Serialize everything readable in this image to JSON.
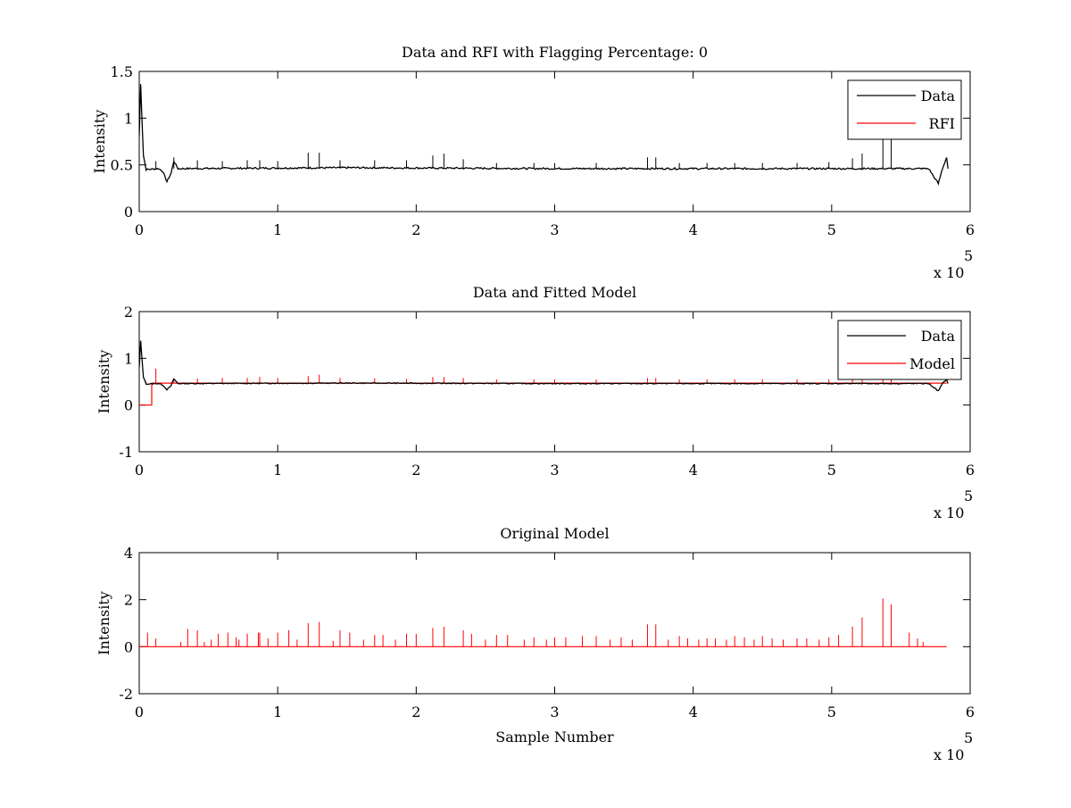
{
  "chart_data": [
    {
      "type": "line",
      "title": "Data and RFI with Flagging Percentage: 0",
      "xlabel": "",
      "ylabel": "Intensity",
      "xlim": [
        0,
        6
      ],
      "ylim": [
        0,
        1.5
      ],
      "x_exponent_label": "x 10",
      "x_exponent": "5",
      "xticks": [
        "0",
        "1",
        "2",
        "3",
        "4",
        "5",
        "6"
      ],
      "yticks": [
        "0",
        "0.5",
        "1",
        "1.5"
      ],
      "ytick_values": [
        0,
        0.5,
        1,
        1.5
      ],
      "legend": {
        "position": "top-right",
        "entries": [
          {
            "name": "Data",
            "color": "#000000"
          },
          {
            "name": "RFI",
            "color": "#ff0000"
          }
        ]
      },
      "baseline": 0.46,
      "features": {
        "start_peak": [
          [
            0,
            0.8
          ],
          [
            0.01,
            1.37
          ],
          [
            0.03,
            0.6
          ],
          [
            0.05,
            0.45
          ]
        ],
        "dips": [
          [
            0.2,
            0.32
          ],
          [
            5.77,
            0.3
          ]
        ],
        "end_bump": [
          5.83,
          0.58
        ]
      },
      "spikes": [
        [
          0.12,
          0.54
        ],
        [
          0.25,
          0.58
        ],
        [
          0.42,
          0.55
        ],
        [
          0.6,
          0.54
        ],
        [
          0.78,
          0.55
        ],
        [
          0.87,
          0.55
        ],
        [
          1.0,
          0.54
        ],
        [
          1.22,
          0.63
        ],
        [
          1.3,
          0.63
        ],
        [
          1.45,
          0.55
        ],
        [
          1.7,
          0.55
        ],
        [
          1.93,
          0.55
        ],
        [
          2.12,
          0.6
        ],
        [
          2.2,
          0.62
        ],
        [
          2.34,
          0.56
        ],
        [
          2.58,
          0.52
        ],
        [
          2.85,
          0.52
        ],
        [
          3.0,
          0.52
        ],
        [
          3.3,
          0.52
        ],
        [
          3.67,
          0.58
        ],
        [
          3.73,
          0.58
        ],
        [
          3.9,
          0.52
        ],
        [
          4.1,
          0.52
        ],
        [
          4.3,
          0.52
        ],
        [
          4.5,
          0.52
        ],
        [
          4.75,
          0.52
        ],
        [
          4.98,
          0.53
        ],
        [
          5.15,
          0.57
        ],
        [
          5.22,
          0.62
        ],
        [
          5.37,
          0.85
        ],
        [
          5.43,
          0.83
        ]
      ]
    },
    {
      "type": "line",
      "title": "Data and Fitted Model",
      "xlabel": "",
      "ylabel": "Intensity",
      "xlim": [
        0,
        6
      ],
      "ylim": [
        -1,
        2
      ],
      "x_exponent_label": "x 10",
      "x_exponent": "5",
      "xticks": [
        "0",
        "1",
        "2",
        "3",
        "4",
        "5",
        "6"
      ],
      "yticks": [
        "-1",
        "0",
        "1",
        "2"
      ],
      "ytick_values": [
        -1,
        0,
        1,
        2
      ],
      "legend": {
        "position": "top-right",
        "entries": [
          {
            "name": "Data",
            "color": "#000000"
          },
          {
            "name": "Model",
            "color": "#ff0000"
          }
        ]
      },
      "data_baseline": 0.46,
      "model_baseline": 0.47,
      "model_start_step": [
        [
          0,
          0.0
        ],
        [
          0.09,
          0.0
        ],
        [
          0.09,
          0.47
        ]
      ],
      "model_spikes": [
        [
          0.05,
          0.5
        ],
        [
          0.12,
          0.78
        ],
        [
          0.25,
          0.57
        ],
        [
          0.42,
          0.57
        ],
        [
          0.6,
          0.58
        ],
        [
          0.78,
          0.58
        ],
        [
          0.87,
          0.6
        ],
        [
          1.0,
          0.58
        ],
        [
          1.22,
          0.62
        ],
        [
          1.3,
          0.65
        ],
        [
          1.45,
          0.58
        ],
        [
          1.7,
          0.57
        ],
        [
          1.93,
          0.56
        ],
        [
          2.12,
          0.6
        ],
        [
          2.2,
          0.6
        ],
        [
          2.34,
          0.58
        ],
        [
          2.58,
          0.55
        ],
        [
          2.85,
          0.55
        ],
        [
          3.0,
          0.55
        ],
        [
          3.3,
          0.55
        ],
        [
          3.67,
          0.58
        ],
        [
          3.73,
          0.58
        ],
        [
          3.9,
          0.55
        ],
        [
          4.1,
          0.55
        ],
        [
          4.3,
          0.55
        ],
        [
          4.5,
          0.55
        ],
        [
          4.75,
          0.55
        ],
        [
          4.98,
          0.55
        ],
        [
          5.15,
          0.56
        ],
        [
          5.22,
          0.56
        ],
        [
          5.37,
          0.56
        ],
        [
          5.43,
          0.56
        ]
      ],
      "data_features": {
        "start_peak": [
          [
            0,
            0.8
          ],
          [
            0.01,
            1.37
          ],
          [
            0.03,
            0.6
          ],
          [
            0.05,
            0.45
          ]
        ],
        "dips": [
          [
            0.2,
            0.33
          ],
          [
            5.77,
            0.3
          ]
        ],
        "end_bump": [
          5.83,
          0.55
        ]
      }
    },
    {
      "type": "line",
      "title": "Original Model",
      "xlabel": "Sample Number",
      "ylabel": "Intensity",
      "xlim": [
        0,
        6
      ],
      "ylim": [
        -2,
        4
      ],
      "x_exponent_label": "x 10",
      "x_exponent": "5",
      "xticks": [
        "0",
        "1",
        "2",
        "3",
        "4",
        "5",
        "6"
      ],
      "yticks": [
        "-2",
        "0",
        "2",
        "4"
      ],
      "ytick_values": [
        -2,
        0,
        2,
        4
      ],
      "baseline": 0.0,
      "x_end": 5.83,
      "spikes": [
        [
          0.06,
          0.6
        ],
        [
          0.12,
          0.35
        ],
        [
          0.3,
          0.2
        ],
        [
          0.35,
          0.75
        ],
        [
          0.42,
          0.7
        ],
        [
          0.47,
          0.2
        ],
        [
          0.52,
          0.3
        ],
        [
          0.57,
          0.55
        ],
        [
          0.64,
          0.6
        ],
        [
          0.7,
          0.4
        ],
        [
          0.72,
          0.3
        ],
        [
          0.78,
          0.55
        ],
        [
          0.86,
          0.6
        ],
        [
          0.87,
          0.6
        ],
        [
          0.93,
          0.35
        ],
        [
          1.0,
          0.6
        ],
        [
          1.08,
          0.7
        ],
        [
          1.14,
          0.3
        ],
        [
          1.22,
          1.0
        ],
        [
          1.3,
          1.05
        ],
        [
          1.4,
          0.25
        ],
        [
          1.45,
          0.7
        ],
        [
          1.52,
          0.6
        ],
        [
          1.62,
          0.3
        ],
        [
          1.7,
          0.5
        ],
        [
          1.76,
          0.5
        ],
        [
          1.85,
          0.3
        ],
        [
          1.93,
          0.55
        ],
        [
          2.0,
          0.55
        ],
        [
          2.12,
          0.8
        ],
        [
          2.2,
          0.85
        ],
        [
          2.34,
          0.7
        ],
        [
          2.4,
          0.55
        ],
        [
          2.5,
          0.3
        ],
        [
          2.58,
          0.5
        ],
        [
          2.66,
          0.5
        ],
        [
          2.78,
          0.3
        ],
        [
          2.85,
          0.4
        ],
        [
          2.94,
          0.3
        ],
        [
          3.0,
          0.4
        ],
        [
          3.08,
          0.4
        ],
        [
          3.2,
          0.45
        ],
        [
          3.3,
          0.45
        ],
        [
          3.4,
          0.3
        ],
        [
          3.48,
          0.4
        ],
        [
          3.56,
          0.3
        ],
        [
          3.67,
          0.95
        ],
        [
          3.73,
          0.95
        ],
        [
          3.82,
          0.3
        ],
        [
          3.9,
          0.45
        ],
        [
          3.96,
          0.35
        ],
        [
          4.04,
          0.3
        ],
        [
          4.1,
          0.35
        ],
        [
          4.16,
          0.35
        ],
        [
          4.24,
          0.3
        ],
        [
          4.3,
          0.45
        ],
        [
          4.37,
          0.4
        ],
        [
          4.44,
          0.3
        ],
        [
          4.5,
          0.45
        ],
        [
          4.57,
          0.35
        ],
        [
          4.65,
          0.3
        ],
        [
          4.75,
          0.35
        ],
        [
          4.82,
          0.35
        ],
        [
          4.91,
          0.3
        ],
        [
          4.98,
          0.4
        ],
        [
          5.05,
          0.5
        ],
        [
          5.15,
          0.85
        ],
        [
          5.22,
          1.25
        ],
        [
          5.37,
          2.05
        ],
        [
          5.43,
          1.8
        ],
        [
          5.56,
          0.6
        ],
        [
          5.62,
          0.35
        ],
        [
          5.66,
          0.2
        ]
      ]
    }
  ]
}
